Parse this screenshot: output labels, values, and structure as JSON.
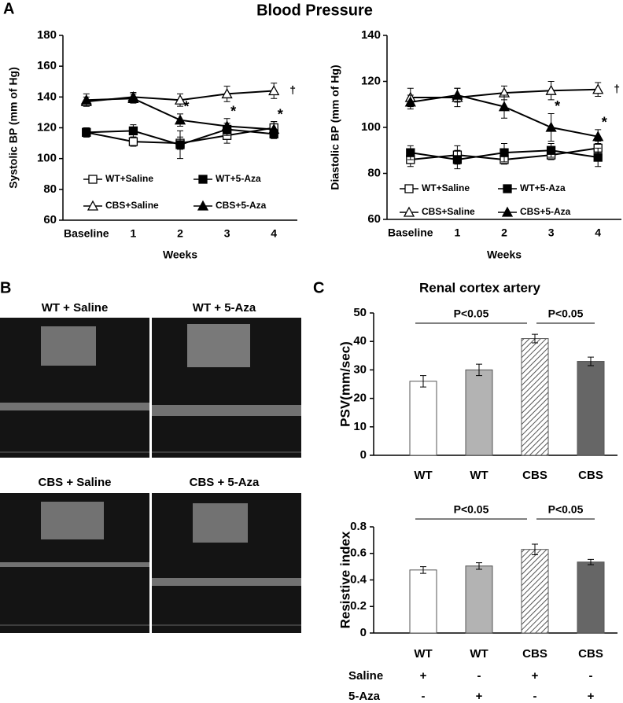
{
  "panel_labels": [
    "A",
    "B",
    "C"
  ],
  "figure_title": "Blood Pressure",
  "images": [
    {
      "title": "WT + Saline"
    },
    {
      "title": "WT + 5-Aza"
    },
    {
      "title": "CBS + Saline"
    },
    {
      "title": "CBS + 5-Aza"
    }
  ],
  "chart_data": [
    {
      "type": "line",
      "x_label": "Weeks",
      "y_label": "Systolic BP (mm of Hg)",
      "categories": [
        "Baseline",
        "1",
        "2",
        "3",
        "4"
      ],
      "ylim": [
        60,
        180
      ],
      "yticks": [
        60,
        80,
        100,
        120,
        140,
        160,
        180
      ],
      "series": [
        {
          "name": "WT+Saline",
          "color": "#000000",
          "marker": "square",
          "filled": false,
          "values": [
            117,
            111,
            110,
            115,
            120
          ],
          "errors": [
            3,
            3,
            4,
            5,
            4
          ]
        },
        {
          "name": "WT+5-Aza",
          "color": "#000000",
          "marker": "square",
          "filled": true,
          "values": [
            117,
            118,
            109,
            119,
            116
          ],
          "errors": [
            3,
            4,
            9,
            4,
            3
          ]
        },
        {
          "name": "CBS+Saline",
          "color": "#000000",
          "marker": "triangle",
          "filled": false,
          "values": [
            137,
            140,
            138,
            142,
            144
          ],
          "errors": [
            3,
            3,
            4,
            5,
            5
          ]
        },
        {
          "name": "CBS+5-Aza",
          "color": "#000000",
          "marker": "triangle",
          "filled": true,
          "values": [
            138,
            139,
            125,
            121,
            119
          ],
          "errors": [
            4,
            3,
            4,
            5,
            5
          ]
        }
      ],
      "significance": {
        "text": "*",
        "x": [
          "2",
          "3",
          "4"
        ]
      },
      "dagger": {
        "text": "†",
        "x": "4"
      }
    },
    {
      "type": "line",
      "x_label": "Weeks",
      "y_label": "Diastolic BP (mm of Hg)",
      "categories": [
        "Baseline",
        "1",
        "2",
        "3",
        "4"
      ],
      "ylim": [
        60,
        140
      ],
      "yticks": [
        60,
        80,
        100,
        120,
        140
      ],
      "series": [
        {
          "name": "WT+Saline",
          "color": "#000000",
          "marker": "square",
          "filled": false,
          "values": [
            86,
            88,
            86,
            88,
            91
          ],
          "errors": [
            3,
            4,
            2,
            2,
            3
          ]
        },
        {
          "name": "WT+5-Aza",
          "color": "#000000",
          "marker": "square",
          "filled": true,
          "values": [
            89,
            86,
            89,
            90,
            87
          ],
          "errors": [
            3,
            4,
            4,
            3,
            4
          ]
        },
        {
          "name": "CBS+Saline",
          "color": "#000000",
          "marker": "triangle",
          "filled": false,
          "values": [
            113,
            113,
            115,
            116,
            116.5
          ],
          "errors": [
            4,
            4,
            3,
            4,
            3
          ]
        },
        {
          "name": "CBS+5-Aza",
          "color": "#000000",
          "marker": "triangle",
          "filled": true,
          "values": [
            111,
            114,
            109,
            100,
            96
          ],
          "errors": [
            3,
            3,
            5,
            6,
            3
          ]
        }
      ],
      "significance": {
        "text": "*",
        "x": [
          "3",
          "4"
        ]
      },
      "dagger": {
        "text": "†",
        "x": "4"
      }
    },
    {
      "type": "bar",
      "title": "Renal cortex artery",
      "y_label": "PSV(mm/sec)",
      "categories": [
        "WT",
        "WT",
        "CBS",
        "CBS"
      ],
      "values": [
        26,
        30,
        41,
        33
      ],
      "errors": [
        2,
        2,
        1.5,
        1.5
      ],
      "colors": [
        "#ffffff",
        "#b3b3b3",
        "#dddddd",
        "#666666"
      ],
      "hatched": [
        false,
        false,
        true,
        false
      ],
      "ylim": [
        0,
        50
      ],
      "yticks": [
        0,
        10,
        20,
        30,
        40,
        50
      ],
      "comparisons": [
        {
          "label": "P<0.05"
        },
        {
          "label": "P<0.05"
        }
      ]
    },
    {
      "type": "bar",
      "y_label": "Resistive index",
      "categories": [
        "WT",
        "WT",
        "CBS",
        "CBS"
      ],
      "values": [
        0.475,
        0.505,
        0.63,
        0.535
      ],
      "errors": [
        0.025,
        0.025,
        0.04,
        0.02
      ],
      "colors": [
        "#ffffff",
        "#b3b3b3",
        "#dddddd",
        "#666666"
      ],
      "hatched": [
        false,
        false,
        true,
        false
      ],
      "ylim": [
        0,
        0.8
      ],
      "yticks": [
        0,
        0.2,
        0.4,
        0.6,
        0.8
      ],
      "comparisons": [
        {
          "label": "P<0.05"
        },
        {
          "label": "P<0.05"
        }
      ]
    }
  ],
  "treatment_table": {
    "rows": [
      {
        "label": "Saline",
        "signs": [
          "+",
          "-",
          "+",
          "-"
        ]
      },
      {
        "label": "5-Aza",
        "signs": [
          "-",
          "+",
          "-",
          "+"
        ]
      }
    ]
  }
}
